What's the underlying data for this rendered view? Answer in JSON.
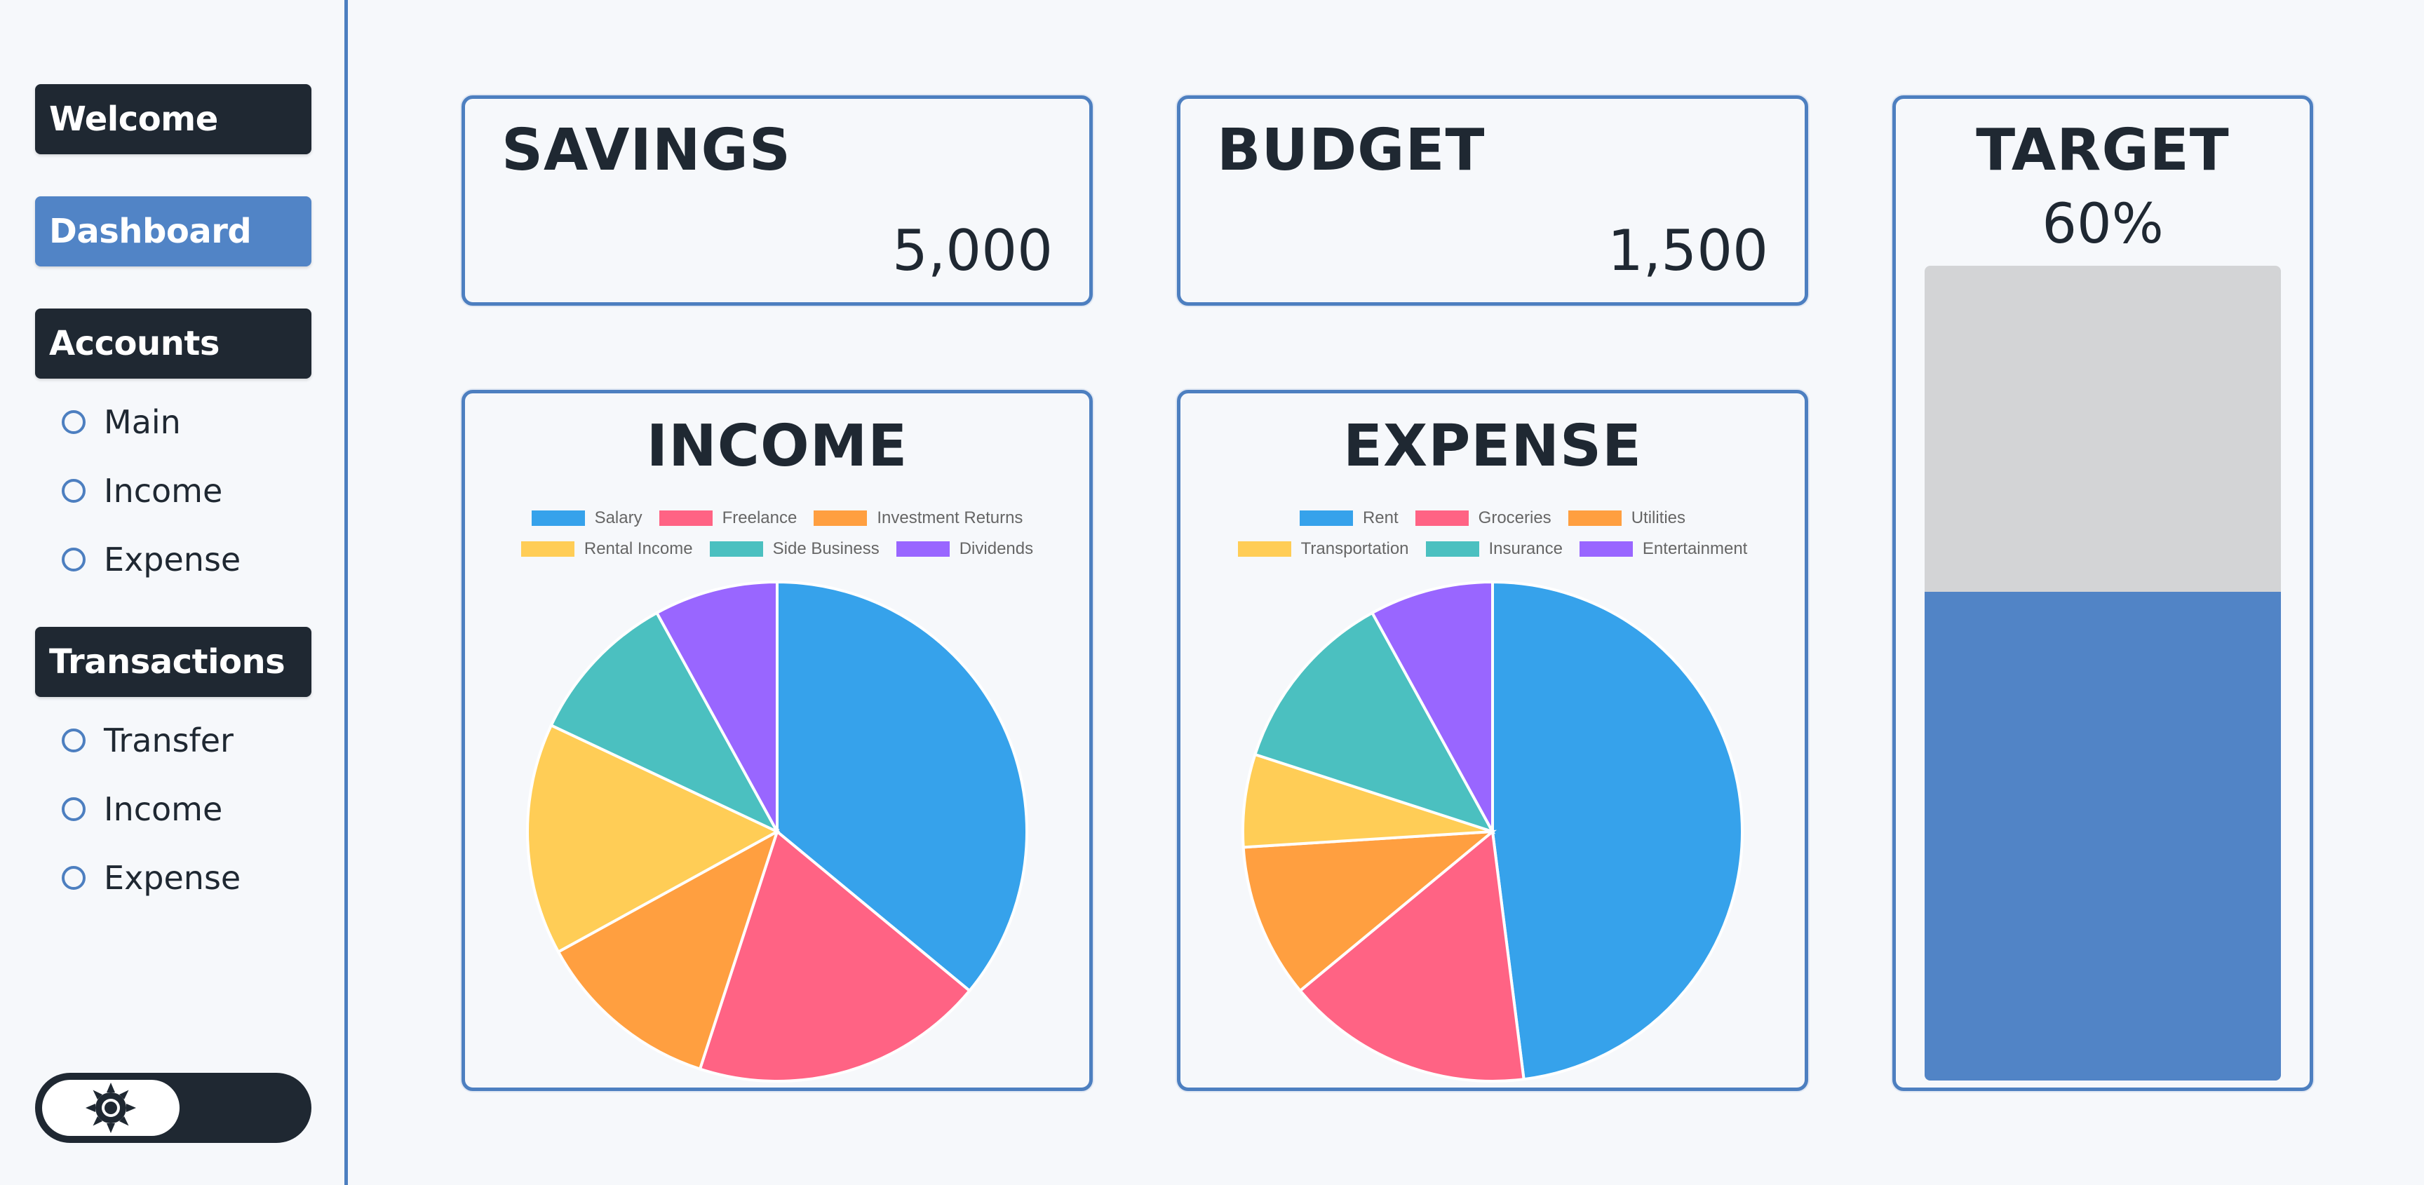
{
  "sidebar": {
    "welcome_label": "Welcome",
    "dashboard_label": "Dashboard",
    "accounts_label": "Accounts",
    "accounts_items": [
      "Main",
      "Income",
      "Expense"
    ],
    "transactions_label": "Transactions",
    "transactions_items": [
      "Transfer",
      "Income",
      "Expense"
    ],
    "theme_toggle_icon": "sun-icon"
  },
  "cards": {
    "savings": {
      "title": "SAVINGS",
      "value": "5,000"
    },
    "budget": {
      "title": "BUDGET",
      "value": "1,500"
    },
    "target": {
      "title": "TARGET",
      "percent_label": "60%",
      "progress": 0.6
    }
  },
  "colors": {
    "accent": "#5184c6",
    "dark": "#1f2832",
    "border": "#4d7fc0",
    "track": "#d3d4d6"
  },
  "chart_data": [
    {
      "type": "pie",
      "title": "INCOME",
      "labels": [
        "Salary",
        "Freelance",
        "Investment Returns",
        "Rental Income",
        "Side Business",
        "Dividends"
      ],
      "values": [
        36,
        19,
        12,
        15,
        10,
        8
      ],
      "colors": [
        "#36a2eb",
        "#ff6384",
        "#ff9f40",
        "#ffcd56",
        "#4bc0c0",
        "#9966ff"
      ],
      "legend": "top"
    },
    {
      "type": "pie",
      "title": "EXPENSE",
      "labels": [
        "Rent",
        "Groceries",
        "Utilities",
        "Transportation",
        "Insurance",
        "Entertainment"
      ],
      "values": [
        48,
        16,
        10,
        6,
        12,
        8
      ],
      "colors": [
        "#36a2eb",
        "#ff6384",
        "#ff9f40",
        "#ffcd56",
        "#4bc0c0",
        "#9966ff"
      ],
      "legend": "top"
    }
  ]
}
